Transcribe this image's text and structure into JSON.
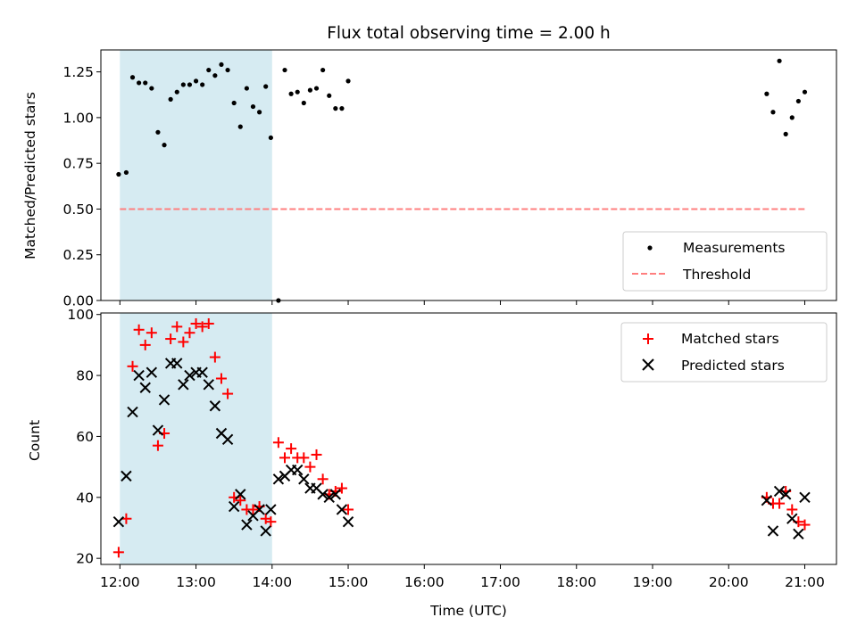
{
  "figure": {
    "title": "Flux total observing time = 2.00 h",
    "xlabel": "Time (UTC)",
    "x_ticks": [
      "12:00",
      "13:00",
      "14:00",
      "15:00",
      "16:00",
      "17:00",
      "18:00",
      "19:00",
      "20:00",
      "21:00"
    ]
  },
  "chart_data": [
    {
      "type": "scatter",
      "title": "Flux total observing time = 2.00 h",
      "xlabel": "",
      "ylabel": "Matched/Predicted stars",
      "xlim": [
        "11:45",
        "21:25"
      ],
      "ylim": [
        0,
        1.37
      ],
      "y_ticks": [
        "0.00",
        "0.25",
        "0.50",
        "0.75",
        "1.00",
        "1.25"
      ],
      "y_tick_values": [
        0,
        0.25,
        0.5,
        0.75,
        1.0,
        1.25
      ],
      "grid": false,
      "legend_position": "lower-right",
      "shaded_interval": {
        "start": "12:00",
        "end": "14:00",
        "color": "#add8e6"
      },
      "series": [
        {
          "name": "Measurements",
          "marker": "dot",
          "color": "#000000",
          "x": [
            "11:59",
            "12:05",
            "12:10",
            "12:15",
            "12:20",
            "12:25",
            "12:30",
            "12:35",
            "12:40",
            "12:45",
            "12:50",
            "12:55",
            "13:00",
            "13:05",
            "13:10",
            "13:15",
            "13:20",
            "13:25",
            "13:30",
            "13:35",
            "13:40",
            "13:45",
            "13:50",
            "13:55",
            "13:59",
            "14:05",
            "14:10",
            "14:15",
            "14:20",
            "14:25",
            "14:30",
            "14:35",
            "14:40",
            "14:45",
            "14:50",
            "14:55",
            "15:00",
            "20:30",
            "20:35",
            "20:40",
            "20:45",
            "20:50",
            "20:55",
            "21:00"
          ],
          "y": [
            0.69,
            0.7,
            1.22,
            1.19,
            1.19,
            1.16,
            0.92,
            0.85,
            1.1,
            1.14,
            1.18,
            1.18,
            1.2,
            1.18,
            1.26,
            1.23,
            1.29,
            1.26,
            1.08,
            0.95,
            1.16,
            1.06,
            1.03,
            1.17,
            0.89,
            0.0,
            1.26,
            1.13,
            1.14,
            1.08,
            1.15,
            1.16,
            1.26,
            1.12,
            1.05,
            1.05,
            1.2,
            1.13,
            1.03,
            1.31,
            0.91,
            1.0,
            1.09,
            1.14
          ]
        },
        {
          "name": "Threshold",
          "style": "dashed",
          "color": "#ff7f7f",
          "x": [
            "12:00",
            "21:00"
          ],
          "y": [
            0.5,
            0.5
          ]
        }
      ]
    },
    {
      "type": "scatter",
      "title": "",
      "xlabel": "Time (UTC)",
      "ylabel": "Count",
      "xlim": [
        "11:45",
        "21:25"
      ],
      "ylim": [
        18,
        100.5
      ],
      "y_ticks": [
        "20",
        "40",
        "60",
        "80",
        "100"
      ],
      "y_tick_values": [
        20,
        40,
        60,
        80,
        100
      ],
      "grid": false,
      "legend_position": "upper-right",
      "shaded_interval": {
        "start": "12:00",
        "end": "14:00",
        "color": "#add8e6"
      },
      "series": [
        {
          "name": "Matched stars",
          "marker": "plus",
          "color": "#ff0000",
          "x": [
            "11:59",
            "12:05",
            "12:10",
            "12:15",
            "12:20",
            "12:25",
            "12:30",
            "12:35",
            "12:40",
            "12:45",
            "12:50",
            "12:55",
            "13:00",
            "13:05",
            "13:10",
            "13:15",
            "13:20",
            "13:25",
            "13:30",
            "13:35",
            "13:40",
            "13:45",
            "13:50",
            "13:55",
            "13:59",
            "14:05",
            "14:10",
            "14:15",
            "14:20",
            "14:25",
            "14:30",
            "14:35",
            "14:40",
            "14:45",
            "14:50",
            "14:55",
            "15:00",
            "20:30",
            "20:35",
            "20:40",
            "20:45",
            "20:50",
            "20:55",
            "21:00"
          ],
          "y": [
            22,
            33,
            83,
            95,
            90,
            94,
            57,
            61,
            92,
            96,
            91,
            94,
            97,
            96,
            97,
            86,
            79,
            74,
            40,
            39,
            36,
            36,
            37,
            33,
            32,
            58,
            53,
            56,
            53,
            53,
            50,
            54,
            46,
            41,
            42,
            43,
            36,
            40,
            38,
            38,
            42,
            36,
            32,
            31
          ]
        },
        {
          "name": "Predicted stars",
          "marker": "x",
          "color": "#000000",
          "x": [
            "11:59",
            "12:05",
            "12:10",
            "12:15",
            "12:20",
            "12:25",
            "12:30",
            "12:35",
            "12:40",
            "12:45",
            "12:50",
            "12:55",
            "13:00",
            "13:05",
            "13:10",
            "13:15",
            "13:20",
            "13:25",
            "13:30",
            "13:35",
            "13:40",
            "13:45",
            "13:50",
            "13:55",
            "13:59",
            "14:05",
            "14:10",
            "14:15",
            "14:20",
            "14:25",
            "14:30",
            "14:35",
            "14:40",
            "14:45",
            "14:50",
            "14:55",
            "15:00",
            "20:30",
            "20:35",
            "20:40",
            "20:45",
            "20:50",
            "20:55",
            "21:00"
          ],
          "y": [
            32,
            47,
            68,
            80,
            76,
            81,
            62,
            72,
            84,
            84,
            77,
            80,
            81,
            81,
            77,
            70,
            61,
            59,
            37,
            41,
            31,
            34,
            36,
            29,
            36,
            46,
            47,
            49,
            49,
            46,
            43,
            43,
            41,
            40,
            41,
            36,
            32,
            39,
            29,
            42,
            41,
            33,
            28,
            40
          ]
        }
      ]
    }
  ]
}
